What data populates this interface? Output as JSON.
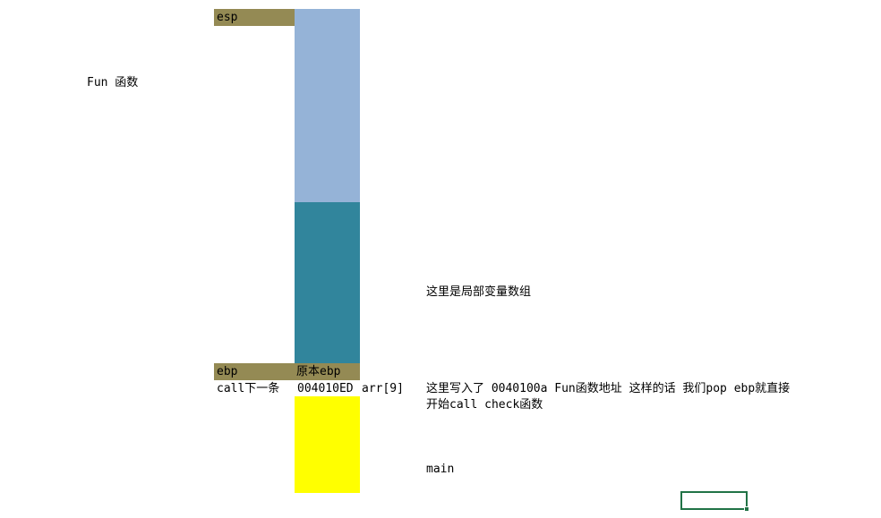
{
  "sheet": {
    "fun_label": "Fun 函数",
    "esp_label": "esp",
    "ebp_label": "ebp",
    "orig_ebp_label": "原本ebp",
    "call_next_label": "call下一条",
    "addr_value": "004010ED",
    "arr_label": "arr[9]",
    "local_array_note": "这里是局部变量数组",
    "overwrite_note_line1": "这里写入了 0040100a Fun函数地址 这样的话 我们pop ebp就直接",
    "overwrite_note_line2": "开始call check函数",
    "main_label": "main"
  },
  "colors": {
    "label_bg": "#948a54",
    "stack_free": "#95b3d7",
    "stack_local": "#31859c",
    "stack_main": "#ffff00",
    "selection_border": "#217346"
  }
}
